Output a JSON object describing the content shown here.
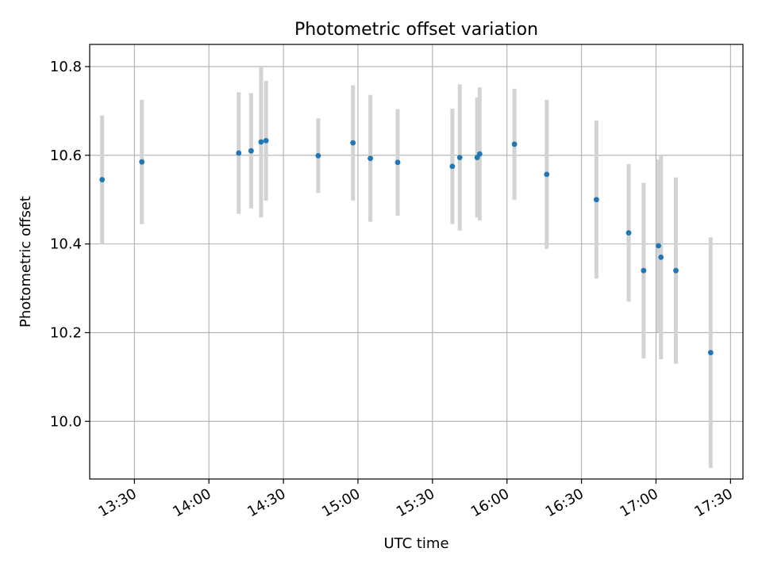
{
  "chart_data": {
    "type": "scatter",
    "title": "Photometric offset variation",
    "xlabel": "UTC time",
    "ylabel": "Photometric offset",
    "grid": true,
    "x_ticks": [
      "13:30",
      "14:00",
      "14:30",
      "15:00",
      "15:30",
      "16:00",
      "16:30",
      "17:00",
      "17:30"
    ],
    "y_ticks": [
      10.0,
      10.2,
      10.4,
      10.6,
      10.8
    ],
    "xlim": [
      "13:12",
      "17:35"
    ],
    "ylim": [
      9.87,
      10.85
    ],
    "colors": {
      "points": "#1f77b4",
      "errorbars": "#d3d3d3",
      "grid": "#b0b0b0"
    },
    "series": [
      {
        "points": [
          {
            "x": "13:17",
            "y": 10.545,
            "err": 0.145
          },
          {
            "x": "13:33",
            "y": 10.585,
            "err": 0.14
          },
          {
            "x": "14:12",
            "y": 10.605,
            "err": 0.137
          },
          {
            "x": "14:17",
            "y": 10.61,
            "err": 0.13
          },
          {
            "x": "14:21",
            "y": 10.63,
            "err": 0.17
          },
          {
            "x": "14:23",
            "y": 10.633,
            "err": 0.135
          },
          {
            "x": "14:44",
            "y": 10.599,
            "err": 0.084
          },
          {
            "x": "14:58",
            "y": 10.628,
            "err": 0.13
          },
          {
            "x": "15:05",
            "y": 10.593,
            "err": 0.143
          },
          {
            "x": "15:16",
            "y": 10.584,
            "err": 0.12
          },
          {
            "x": "15:38",
            "y": 10.575,
            "err": 0.13
          },
          {
            "x": "15:41",
            "y": 10.595,
            "err": 0.165
          },
          {
            "x": "15:48",
            "y": 10.595,
            "err": 0.135
          },
          {
            "x": "15:49",
            "y": 10.603,
            "err": 0.15
          },
          {
            "x": "16:03",
            "y": 10.625,
            "err": 0.125
          },
          {
            "x": "16:16",
            "y": 10.557,
            "err": 0.168
          },
          {
            "x": "16:36",
            "y": 10.5,
            "err": 0.178
          },
          {
            "x": "16:49",
            "y": 10.425,
            "err": 0.155
          },
          {
            "x": "16:55",
            "y": 10.34,
            "err": 0.198
          },
          {
            "x": "17:01",
            "y": 10.396,
            "err": 0.195
          },
          {
            "x": "17:02",
            "y": 10.37,
            "err": 0.23
          },
          {
            "x": "17:08",
            "y": 10.34,
            "err": 0.21
          },
          {
            "x": "17:22",
            "y": 10.155,
            "err": 0.26
          }
        ]
      }
    ]
  }
}
